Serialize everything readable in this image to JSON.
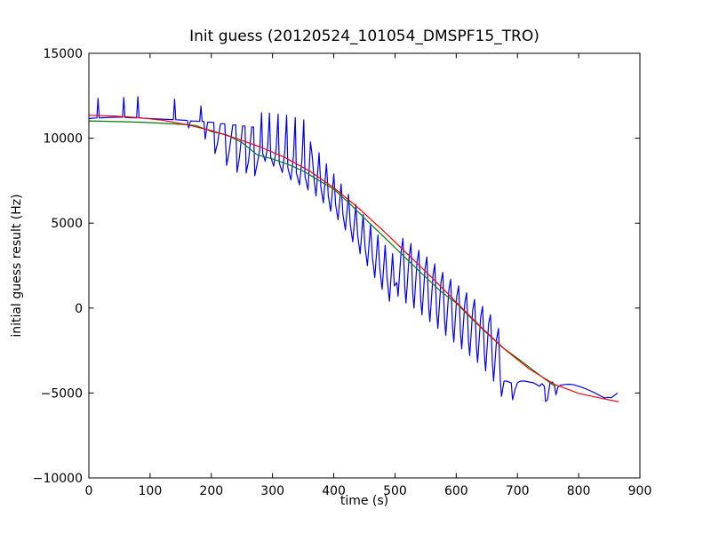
{
  "chart_data": {
    "type": "line",
    "title": "Init guess (20120524_101054_DMSPF15_TRO)",
    "xlabel": "time (s)",
    "ylabel": "initial guess result (Hz)",
    "xlim": [
      0,
      900
    ],
    "ylim": [
      -10000,
      15000
    ],
    "grid": false,
    "legend_position": "none",
    "background_color": "#ffffff",
    "frame_color": "#000000",
    "x_ticks": {
      "values": [
        0,
        100,
        200,
        300,
        400,
        500,
        600,
        700,
        800,
        900
      ],
      "labels": [
        "0",
        "100",
        "200",
        "300",
        "400",
        "500",
        "600",
        "700",
        "800",
        "900"
      ]
    },
    "y_ticks": {
      "values": [
        -10000,
        -5000,
        0,
        5000,
        10000,
        15000
      ],
      "labels": [
        "−10000",
        "−5000",
        "0",
        "5000",
        "10000",
        "15000"
      ]
    },
    "series": [
      {
        "key": "measured-init-guess",
        "color": "#0000ff",
        "points": [
          [
            0,
            11150
          ],
          [
            6,
            11180
          ],
          [
            13,
            11190
          ],
          [
            15,
            12350
          ],
          [
            17,
            11190
          ],
          [
            25,
            11210
          ],
          [
            35,
            11230
          ],
          [
            45,
            11240
          ],
          [
            55,
            11240
          ],
          [
            57,
            12400
          ],
          [
            59,
            11230
          ],
          [
            68,
            11210
          ],
          [
            78,
            11200
          ],
          [
            80,
            12450
          ],
          [
            82,
            11200
          ],
          [
            92,
            11170
          ],
          [
            103,
            11150
          ],
          [
            115,
            11130
          ],
          [
            127,
            11110
          ],
          [
            138,
            11100
          ],
          [
            140,
            12300
          ],
          [
            142,
            11090
          ],
          [
            150,
            11070
          ],
          [
            158,
            11050
          ],
          [
            161,
            11040
          ],
          [
            163,
            10600
          ],
          [
            166,
            11020
          ],
          [
            172,
            11010
          ],
          [
            178,
            11000
          ],
          [
            181,
            11000
          ],
          [
            183,
            11900
          ],
          [
            185,
            11000
          ],
          [
            188,
            10990
          ],
          [
            190,
            9950
          ],
          [
            194,
            10940
          ],
          [
            199,
            10940
          ],
          [
            204,
            10930
          ],
          [
            206,
            9100
          ],
          [
            210,
            9700
          ],
          [
            215,
            10850
          ],
          [
            222,
            10850
          ],
          [
            225,
            8400
          ],
          [
            229,
            9200
          ],
          [
            235,
            10780
          ],
          [
            240,
            10780
          ],
          [
            242,
            8000
          ],
          [
            246,
            8900
          ],
          [
            251,
            10720
          ],
          [
            255,
            10720
          ],
          [
            257,
            7950
          ],
          [
            261,
            8700
          ],
          [
            266,
            10660
          ],
          [
            269,
            10660
          ],
          [
            271,
            7800
          ],
          [
            275,
            8500
          ],
          [
            279,
            9300
          ],
          [
            282,
            11500
          ],
          [
            284,
            9100
          ],
          [
            288,
            8650
          ],
          [
            292,
            9500
          ],
          [
            295,
            11480
          ],
          [
            297,
            8900
          ],
          [
            302,
            8350
          ],
          [
            306,
            9400
          ],
          [
            309,
            11420
          ],
          [
            311,
            8550
          ],
          [
            316,
            7980
          ],
          [
            320,
            9200
          ],
          [
            323,
            11360
          ],
          [
            325,
            8250
          ],
          [
            330,
            7550
          ],
          [
            334,
            8900
          ],
          [
            337,
            11220
          ],
          [
            339,
            7950
          ],
          [
            344,
            7250
          ],
          [
            348,
            8700
          ],
          [
            351,
            11080
          ],
          [
            353,
            7750
          ],
          [
            358,
            6950
          ],
          [
            362,
            9780
          ],
          [
            365,
            8900
          ],
          [
            368,
            7500
          ],
          [
            371,
            6600
          ],
          [
            376,
            9140
          ],
          [
            379,
            7100
          ],
          [
            383,
            6200
          ],
          [
            388,
            8500
          ],
          [
            391,
            6600
          ],
          [
            395,
            5700
          ],
          [
            400,
            7900
          ],
          [
            403,
            6100
          ],
          [
            407,
            5200
          ],
          [
            412,
            7300
          ],
          [
            415,
            5500
          ],
          [
            419,
            4600
          ],
          [
            424,
            6700
          ],
          [
            427,
            4900
          ],
          [
            431,
            3900
          ],
          [
            436,
            6100
          ],
          [
            439,
            4300
          ],
          [
            443,
            3200
          ],
          [
            448,
            5500
          ],
          [
            451,
            3600
          ],
          [
            455,
            2500
          ],
          [
            460,
            4900
          ],
          [
            463,
            3000
          ],
          [
            467,
            1800
          ],
          [
            472,
            4300
          ],
          [
            475,
            2400
          ],
          [
            479,
            1100
          ],
          [
            484,
            3700
          ],
          [
            487,
            1800
          ],
          [
            491,
            400
          ],
          [
            496,
            3200
          ],
          [
            499,
            1300
          ],
          [
            503,
            1500
          ],
          [
            505,
            700
          ],
          [
            510,
            3300
          ],
          [
            513,
            4100
          ],
          [
            516,
            1200
          ],
          [
            518,
            300
          ],
          [
            523,
            3000
          ],
          [
            526,
            3800
          ],
          [
            529,
            900
          ],
          [
            531,
            0
          ],
          [
            536,
            2700
          ],
          [
            539,
            3400
          ],
          [
            542,
            500
          ],
          [
            544,
            -400
          ],
          [
            549,
            2300
          ],
          [
            552,
            3000
          ],
          [
            555,
            100
          ],
          [
            557,
            -800
          ],
          [
            562,
            1900
          ],
          [
            565,
            2600
          ],
          [
            568,
            -300
          ],
          [
            570,
            -1200
          ],
          [
            575,
            1500
          ],
          [
            578,
            2100
          ],
          [
            581,
            -700
          ],
          [
            583,
            -1600
          ],
          [
            588,
            1100
          ],
          [
            591,
            1700
          ],
          [
            594,
            -1100
          ],
          [
            596,
            -2000
          ],
          [
            601,
            700
          ],
          [
            604,
            1300
          ],
          [
            607,
            -1500
          ],
          [
            609,
            -2400
          ],
          [
            614,
            300
          ],
          [
            617,
            900
          ],
          [
            620,
            -1900
          ],
          [
            622,
            -2800
          ],
          [
            627,
            -100
          ],
          [
            630,
            500
          ],
          [
            633,
            -2300
          ],
          [
            635,
            -3200
          ],
          [
            640,
            -500
          ],
          [
            643,
            100
          ],
          [
            646,
            -2700
          ],
          [
            648,
            -3700
          ],
          [
            653,
            -900
          ],
          [
            656,
            -400
          ],
          [
            659,
            -3200
          ],
          [
            661,
            -4300
          ],
          [
            666,
            -1800
          ],
          [
            669,
            -1200
          ],
          [
            672,
            -4200
          ],
          [
            674,
            -5200
          ],
          [
            678,
            -4300
          ],
          [
            682,
            -4300
          ],
          [
            686,
            -4350
          ],
          [
            690,
            -4400
          ],
          [
            692,
            -5400
          ],
          [
            696,
            -4800
          ],
          [
            700,
            -4400
          ],
          [
            705,
            -4300
          ],
          [
            712,
            -4300
          ],
          [
            719,
            -4350
          ],
          [
            726,
            -4400
          ],
          [
            731,
            -4500
          ],
          [
            736,
            -4600
          ],
          [
            740,
            -4450
          ],
          [
            744,
            -4600
          ],
          [
            746,
            -5500
          ],
          [
            749,
            -5400
          ],
          [
            753,
            -4450
          ],
          [
            757,
            -4350
          ],
          [
            760,
            -4500
          ],
          [
            763,
            -5100
          ],
          [
            766,
            -4650
          ],
          [
            770,
            -4550
          ],
          [
            777,
            -4500
          ],
          [
            784,
            -4480
          ],
          [
            792,
            -4520
          ],
          [
            800,
            -4600
          ],
          [
            808,
            -4700
          ],
          [
            816,
            -4820
          ],
          [
            824,
            -4950
          ],
          [
            832,
            -5100
          ],
          [
            838,
            -5220
          ],
          [
            843,
            -5300
          ],
          [
            848,
            -5250
          ],
          [
            853,
            -5280
          ],
          [
            858,
            -5150
          ],
          [
            863,
            -5020
          ]
        ]
      },
      {
        "key": "smooth-fit-green",
        "color": "#008000",
        "points": [
          [
            0,
            11020
          ],
          [
            50,
            10980
          ],
          [
            100,
            10920
          ],
          [
            150,
            10820
          ],
          [
            175,
            10750
          ],
          [
            200,
            10400
          ],
          [
            225,
            10200
          ],
          [
            250,
            9750
          ],
          [
            275,
            9020
          ],
          [
            300,
            8780
          ],
          [
            325,
            8470
          ],
          [
            350,
            8070
          ],
          [
            375,
            7530
          ],
          [
            400,
            7000
          ],
          [
            425,
            6180
          ],
          [
            450,
            5300
          ],
          [
            475,
            4430
          ],
          [
            500,
            3560
          ],
          [
            525,
            2680
          ],
          [
            550,
            1820
          ],
          [
            575,
            980
          ],
          [
            600,
            300
          ],
          [
            625,
            -620
          ],
          [
            650,
            -1480
          ],
          [
            675,
            -2300
          ],
          [
            700,
            -2950
          ],
          [
            720,
            -3500
          ],
          [
            740,
            -4050
          ],
          [
            755,
            -4450
          ],
          [
            762,
            -4600
          ]
        ]
      },
      {
        "key": "smooth-fit-red",
        "color": "#ff0000",
        "points": [
          [
            0,
            11350
          ],
          [
            40,
            11310
          ],
          [
            80,
            11220
          ],
          [
            120,
            11060
          ],
          [
            160,
            10800
          ],
          [
            200,
            10450
          ],
          [
            240,
            10000
          ],
          [
            280,
            9480
          ],
          [
            320,
            8870
          ],
          [
            360,
            8080
          ],
          [
            400,
            7080
          ],
          [
            440,
            5900
          ],
          [
            480,
            4580
          ],
          [
            520,
            3200
          ],
          [
            560,
            1800
          ],
          [
            600,
            350
          ],
          [
            640,
            -1100
          ],
          [
            680,
            -2450
          ],
          [
            720,
            -3600
          ],
          [
            760,
            -4480
          ],
          [
            800,
            -5020
          ],
          [
            835,
            -5300
          ],
          [
            865,
            -5520
          ]
        ]
      }
    ]
  }
}
